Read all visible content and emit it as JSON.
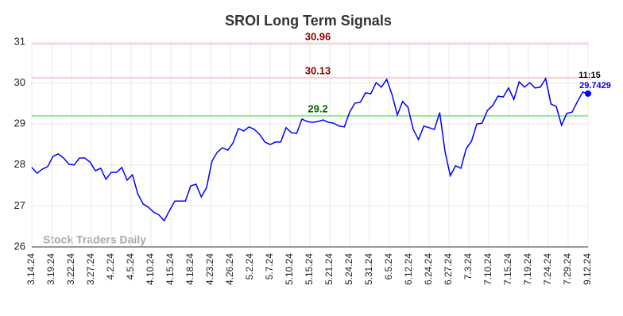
{
  "chart_data": {
    "type": "line",
    "title": "SROI Long Term Signals",
    "watermark": "Stock Traders Daily",
    "x": [
      0,
      1,
      2,
      3,
      4,
      5,
      6,
      7,
      8,
      9,
      10,
      11,
      12,
      13,
      14,
      15,
      16,
      17,
      18,
      19,
      20,
      21,
      22,
      23,
      24,
      25,
      26,
      27,
      28,
      29,
      30,
      31,
      32,
      33,
      34,
      35,
      36,
      37,
      38,
      39,
      40,
      41,
      42,
      43,
      44,
      45,
      46,
      47,
      48,
      49,
      50,
      51,
      52,
      53,
      54,
      55,
      56,
      57,
      58,
      59,
      60,
      61,
      62,
      63,
      64,
      65,
      66,
      67,
      68,
      69,
      70,
      71,
      72,
      73,
      74,
      75,
      76,
      77,
      78,
      79,
      80,
      81,
      82,
      83,
      84,
      85,
      86,
      87,
      88,
      89,
      90,
      91,
      92,
      93,
      94,
      95,
      96,
      97,
      98,
      99,
      100,
      101,
      102,
      103,
      104,
      105
    ],
    "series": [
      {
        "name": "SROI",
        "color": "#0000ff",
        "values": [
          27.94,
          27.8,
          27.9,
          27.96,
          28.21,
          28.27,
          28.17,
          28.02,
          28.0,
          28.17,
          28.17,
          28.07,
          27.86,
          27.92,
          27.65,
          27.82,
          27.82,
          27.94,
          27.63,
          27.76,
          27.3,
          27.05,
          26.97,
          26.85,
          26.78,
          26.64,
          26.89,
          27.12,
          27.12,
          27.12,
          27.49,
          27.53,
          27.22,
          27.45,
          28.09,
          28.31,
          28.42,
          28.36,
          28.54,
          28.89,
          28.83,
          28.93,
          28.87,
          28.75,
          28.56,
          28.5,
          28.56,
          28.56,
          28.91,
          28.79,
          28.77,
          29.12,
          29.06,
          29.04,
          29.06,
          29.1,
          29.04,
          29.02,
          28.95,
          28.93,
          29.29,
          29.51,
          29.53,
          29.76,
          29.74,
          30.01,
          29.9,
          30.09,
          29.72,
          29.22,
          29.55,
          29.41,
          28.87,
          28.62,
          28.95,
          28.91,
          28.87,
          29.28,
          28.33,
          27.74,
          27.98,
          27.92,
          28.4,
          28.58,
          29.0,
          29.02,
          29.33,
          29.45,
          29.68,
          29.66,
          29.88,
          29.6,
          30.03,
          29.9,
          30.01,
          29.88,
          29.9,
          30.11,
          29.49,
          29.43,
          28.97,
          29.26,
          29.29,
          29.55,
          29.78,
          29.7429
        ]
      }
    ],
    "last_time_label": "11:15",
    "reference_lines": [
      {
        "value": 30.96,
        "color": "#ffcccc",
        "label_color": "#8b0000"
      },
      {
        "value": 30.13,
        "color": "#ffcccc",
        "label_color": "#8b0000"
      },
      {
        "value": 29.2,
        "color": "#90ee90",
        "label_color": "#006400"
      }
    ],
    "xlim": [
      0,
      105
    ],
    "xticks": [
      {
        "value": 0,
        "label": "3.14.24"
      },
      {
        "value": 3.75,
        "label": "3.19.24"
      },
      {
        "value": 7.5,
        "label": "3.22.24"
      },
      {
        "value": 11.25,
        "label": "3.27.24"
      },
      {
        "value": 15,
        "label": "4.2.24"
      },
      {
        "value": 18.75,
        "label": "4.5.24"
      },
      {
        "value": 22.5,
        "label": "4.10.24"
      },
      {
        "value": 26.25,
        "label": "4.15.24"
      },
      {
        "value": 30,
        "label": "4.18.24"
      },
      {
        "value": 33.75,
        "label": "4.23.24"
      },
      {
        "value": 37.5,
        "label": "4.26.24"
      },
      {
        "value": 41.25,
        "label": "5.2.24"
      },
      {
        "value": 45,
        "label": "5.7.24"
      },
      {
        "value": 48.75,
        "label": "5.10.24"
      },
      {
        "value": 52.5,
        "label": "5.15.24"
      },
      {
        "value": 56.25,
        "label": "5.21.24"
      },
      {
        "value": 60,
        "label": "5.24.24"
      },
      {
        "value": 63.75,
        "label": "5.31.24"
      },
      {
        "value": 67.5,
        "label": "6.5.24"
      },
      {
        "value": 71.25,
        "label": "6.12.24"
      },
      {
        "value": 75,
        "label": "6.24.24"
      },
      {
        "value": 78.75,
        "label": "6.27.24"
      },
      {
        "value": 82.5,
        "label": "7.3.24"
      },
      {
        "value": 86.25,
        "label": "7.10.24"
      },
      {
        "value": 90,
        "label": "7.15.24"
      },
      {
        "value": 93.75,
        "label": "7.19.24"
      },
      {
        "value": 97.5,
        "label": "7.24.24"
      },
      {
        "value": 101.25,
        "label": "7.29.24"
      },
      {
        "value": 105,
        "label": "9.12.24"
      }
    ],
    "ylim": [
      26,
      31
    ],
    "yticks": [
      26,
      27,
      28,
      29,
      30,
      31
    ],
    "grid": true
  }
}
